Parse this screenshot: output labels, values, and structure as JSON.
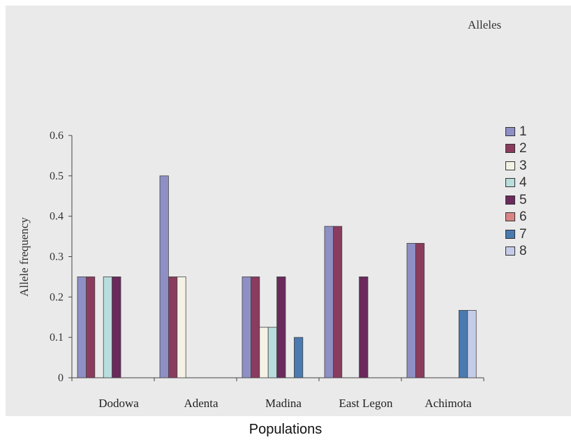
{
  "chart_data": {
    "type": "bar",
    "title": "",
    "xlabel": "Populations",
    "ylabel": "Allele frequency",
    "ylim": [
      0,
      0.6
    ],
    "yticks": [
      "0",
      "0.1",
      "0.2",
      "0.3",
      "0.4",
      "0.5",
      "0.6"
    ],
    "categories": [
      "Dodowa",
      "Adenta",
      "Madina",
      "East Legon",
      "Achimota"
    ],
    "legend_title": "Alleles",
    "legend_position": "right",
    "series": [
      {
        "name": "1",
        "color": "#8e8fc4",
        "values": [
          0.25,
          0.5,
          0.25,
          0.375,
          0.333
        ]
      },
      {
        "name": "2",
        "color": "#8a3c5e",
        "values": [
          0.25,
          0.25,
          0.25,
          0.375,
          0.333
        ]
      },
      {
        "name": "3",
        "color": "#f4f2e4",
        "values": [
          0,
          0.25,
          0.125,
          0,
          0
        ]
      },
      {
        "name": "4",
        "color": "#b9dcdc",
        "values": [
          0.25,
          0,
          0.125,
          0,
          0
        ]
      },
      {
        "name": "5",
        "color": "#6a2a5c",
        "values": [
          0.25,
          0,
          0.25,
          0.25,
          0
        ]
      },
      {
        "name": "6",
        "color": "#d98585",
        "values": [
          0,
          0,
          0,
          0,
          0
        ]
      },
      {
        "name": "7",
        "color": "#4a7ab0",
        "values": [
          0,
          0,
          0.1,
          0,
          0.167
        ]
      },
      {
        "name": "8",
        "color": "#c4cce8",
        "values": [
          0,
          0,
          0,
          0,
          0.167
        ]
      }
    ]
  }
}
